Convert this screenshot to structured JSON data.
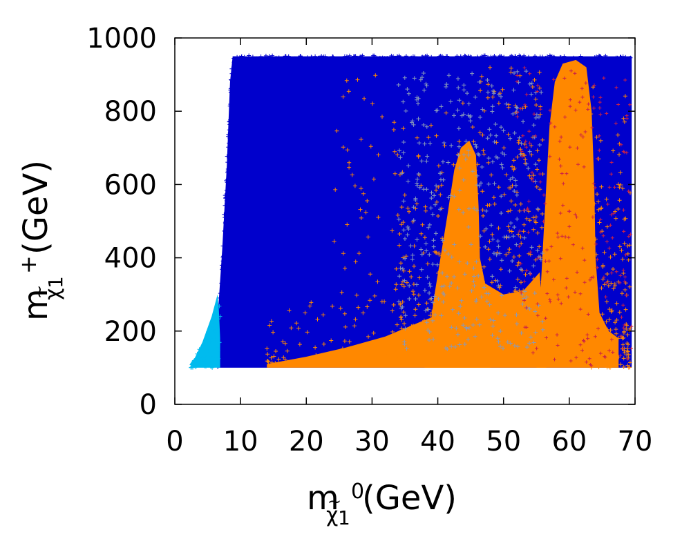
{
  "chart_data": {
    "type": "scatter",
    "title": "",
    "xlabel": {
      "base": "m",
      "sub_tilde_letter": "χ",
      "sub_index": "1",
      "sup": "0",
      "unit": "(GeV)"
    },
    "ylabel": {
      "base": "m",
      "sub_tilde_letter": "χ",
      "sub_index": "1",
      "sup": "+",
      "unit": "(GeV)"
    },
    "xlim": [
      0,
      70
    ],
    "ylim": [
      0,
      1000
    ],
    "x_ticks": [
      {
        "value": 0,
        "label": "0"
      },
      {
        "value": 10,
        "label": "10"
      },
      {
        "value": 20,
        "label": "20"
      },
      {
        "value": 30,
        "label": "30"
      },
      {
        "value": 40,
        "label": "40"
      },
      {
        "value": 50,
        "label": "50"
      },
      {
        "value": 60,
        "label": "60"
      },
      {
        "value": 70,
        "label": "70"
      }
    ],
    "y_ticks": [
      {
        "value": 0,
        "label": "0"
      },
      {
        "value": 200,
        "label": "200"
      },
      {
        "value": 400,
        "label": "400"
      },
      {
        "value": 600,
        "label": "600"
      },
      {
        "value": 800,
        "label": "800"
      },
      {
        "value": 1000,
        "label": "1000"
      }
    ],
    "grid": false,
    "legend": "none",
    "series": [
      {
        "color": "#0000cc",
        "description_regions": [
          {
            "x": [
              8.8,
              69.5
            ],
            "y": [
              100,
              950
            ]
          },
          {
            "x": [
              6.5,
              8.8
            ],
            "y": [
              100,
              950
            ],
            "ramp": "left edge rises from ~200 at x=6.5 to ~950 at x=8.8"
          }
        ]
      },
      {
        "color": "#00bbee",
        "description_regions": [
          {
            "x": [
              2.0,
              7.0
            ],
            "y": [
              100,
              300
            ],
            "shape": "wedge"
          }
        ]
      },
      {
        "color": "#ff8800",
        "description_regions": [
          {
            "x": [
              14,
              46
            ],
            "y": [
              100,
              260
            ],
            "shape": "tail"
          },
          {
            "x": [
              40,
              48
            ],
            "y": [
              100,
              700
            ],
            "shape": "column"
          },
          {
            "x": [
              44,
              56
            ],
            "y": [
              100,
              380
            ],
            "shape": "valley"
          },
          {
            "x": [
              56,
              65
            ],
            "y": [
              100,
              940
            ],
            "shape": "column"
          },
          {
            "x": [
              65,
              69.5
            ],
            "y": [
              100,
              400
            ],
            "shape": "fringe"
          }
        ]
      },
      {
        "color": "#8899bb",
        "description_regions": [
          {
            "x": [
              35,
              56
            ],
            "y": [
              300,
              900
            ],
            "shape": "sparse"
          }
        ]
      },
      {
        "color": "#cc2244",
        "description_regions": [
          {
            "x": [
              55,
              69.5
            ],
            "y": [
              100,
              900
            ],
            "shape": "sparse"
          }
        ]
      }
    ]
  }
}
